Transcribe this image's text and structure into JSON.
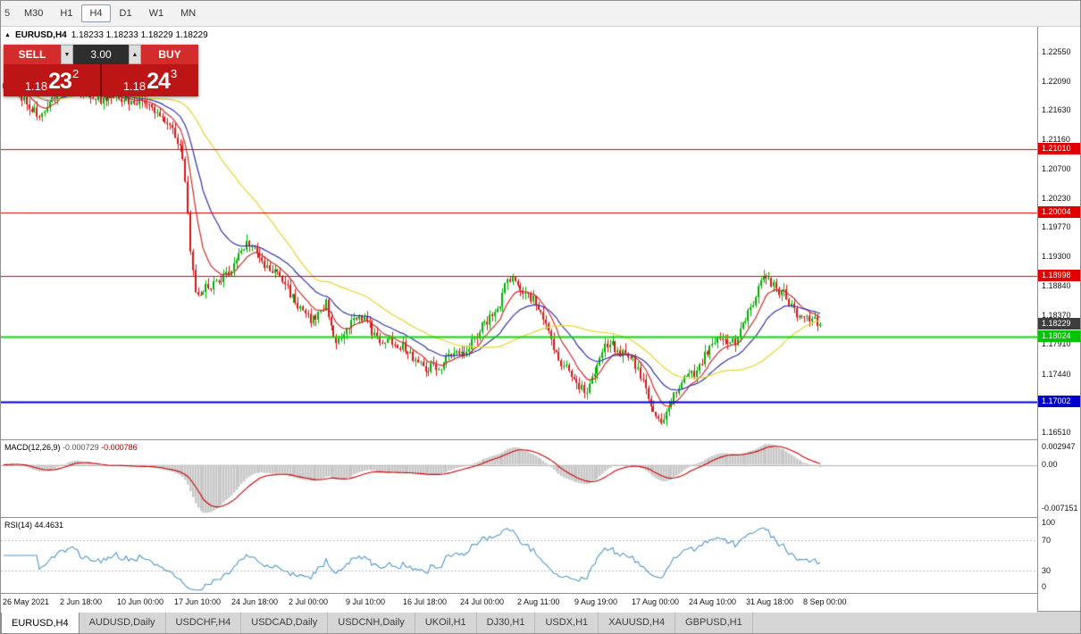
{
  "icons": {
    "expand_arrow": "▲",
    "spinner_up": "▲",
    "spinner_down": "▼"
  },
  "toolbar": {
    "partial_label": "5",
    "timeframes": [
      {
        "label": "M30",
        "active": false
      },
      {
        "label": "H1",
        "active": false
      },
      {
        "label": "H4",
        "active": true
      },
      {
        "label": "D1",
        "active": false
      },
      {
        "label": "W1",
        "active": false
      },
      {
        "label": "MN",
        "active": false
      }
    ]
  },
  "chart": {
    "symbol_title": "EURUSD,H4",
    "ohlc_line": "1.18233 1.18233 1.18229 1.18229"
  },
  "trade_panel": {
    "sell_label": "SELL",
    "buy_label": "BUY",
    "volume": "3.00",
    "sell_price": {
      "big": "1.18",
      "pips": "23",
      "sup": "2"
    },
    "buy_price": {
      "big": "1.18",
      "pips": "24",
      "sup": "3"
    }
  },
  "indicators": {
    "macd": {
      "name": "MACD(12,26,9)",
      "value1": "-0.000729",
      "value2": "-0.000786",
      "axis": [
        "0.002947",
        "0.00",
        "-0.007151"
      ],
      "range": [
        0.004,
        -0.0085
      ],
      "params": {
        "fast": 12,
        "slow": 26,
        "signal": 9
      }
    },
    "rsi": {
      "name": "RSI(14)",
      "value": "44.4631",
      "axis": [
        "100",
        "70",
        "30",
        "0"
      ],
      "levels": [
        70,
        30
      ],
      "period": 14
    }
  },
  "price_axis": {
    "ticks": [
      {
        "label": "1.22550",
        "price": 1.2255
      },
      {
        "label": "1.22090",
        "price": 1.2209
      },
      {
        "label": "1.21630",
        "price": 1.2163
      },
      {
        "label": "1.21160",
        "price": 1.2116
      },
      {
        "label": "1.20700",
        "price": 1.207
      },
      {
        "label": "1.20230",
        "price": 1.2023
      },
      {
        "label": "1.19770",
        "price": 1.1977
      },
      {
        "label": "1.19300",
        "price": 1.193
      },
      {
        "label": "1.18840",
        "price": 1.1884
      },
      {
        "label": "1.18370",
        "price": 1.1837
      },
      {
        "label": "1.17910",
        "price": 1.1791
      },
      {
        "label": "1.17440",
        "price": 1.1744
      },
      {
        "label": "1.16510",
        "price": 1.1651
      }
    ],
    "badges": [
      {
        "label": "1.21010",
        "price": 1.2101,
        "bg": "#e00000",
        "fg": "#ffffff"
      },
      {
        "label": "1.20004",
        "price": 1.20004,
        "bg": "#e00000",
        "fg": "#ffffff"
      },
      {
        "label": "1.18998",
        "price": 1.18998,
        "bg": "#e00000",
        "fg": "#ffffff"
      },
      {
        "label": "1.18229",
        "price": 1.18229,
        "bg": "#3d3d3d",
        "fg": "#ffffff"
      },
      {
        "label": "1.18024",
        "price": 1.18024,
        "bg": "#00c400",
        "fg": "#ffffff"
      },
      {
        "label": "1.17002",
        "price": 1.17002,
        "bg": "#0000cc",
        "fg": "#ffffff"
      }
    ]
  },
  "tabs": [
    {
      "label": "EURUSD,H4",
      "active": true
    },
    {
      "label": "AUDUSD,Daily",
      "active": false
    },
    {
      "label": "USDCHF,H4",
      "active": false
    },
    {
      "label": "USDCAD,Daily",
      "active": false
    },
    {
      "label": "USDCNH,Daily",
      "active": false
    },
    {
      "label": "UKOil,H1",
      "active": false
    },
    {
      "label": "DJ30,H1",
      "active": false
    },
    {
      "label": "USDX,H1",
      "active": false
    },
    {
      "label": "XAUUSD,H4",
      "active": false
    },
    {
      "label": "GBPUSD,H1",
      "active": false
    }
  ],
  "chart_data": {
    "type": "candlestick",
    "symbol": "EURUSD",
    "timeframe": "H4",
    "open": 1.18233,
    "high": 1.18233,
    "low": 1.18229,
    "close": 1.18229,
    "last_price": 1.18229,
    "price_range": [
      1.164,
      1.2295
    ],
    "data_fraction": 0.79,
    "candle_count": 320,
    "x_labels": [
      "26 May 2021",
      "2 Jun 18:00",
      "10 Jun 00:00",
      "17 Jun 10:00",
      "24 Jun 18:00",
      "2 Jul 00:00",
      "9 Jul 10:00",
      "16 Jul 18:00",
      "24 Jul 00:00",
      "2 Aug 11:00",
      "9 Aug 19:00",
      "17 Aug 00:00",
      "24 Aug 10:00",
      "31 Aug 18:00",
      "8 Sep 00:00"
    ],
    "hlines": [
      {
        "price": 1.2101,
        "color": "#e00000",
        "width": 1
      },
      {
        "price": 1.20004,
        "color": "#e00000",
        "width": 1
      },
      {
        "price": 1.18998,
        "color": "#e00000",
        "width": 1
      },
      {
        "price": 1.18024,
        "color": "#00dc00",
        "width": 2
      },
      {
        "price": 1.17002,
        "color": "#0000d2",
        "width": 2
      }
    ],
    "moving_averages": [
      {
        "type": "ema",
        "period": 10,
        "color": "#d22a2a"
      },
      {
        "type": "ema",
        "period": 25,
        "color": "#3232aa"
      },
      {
        "type": "sma",
        "period": 50,
        "color": "#e8d22e"
      }
    ],
    "colors": {
      "up": "#00b000",
      "down": "#dc1414",
      "macd_hist": "#c8c8c8",
      "macd_signal": "#cc0000",
      "rsi_line": "#4f96c8",
      "rsi_levels": "#b6b6cc",
      "zero_line": "#b0b0b0"
    },
    "price_path": [
      [
        0.0,
        1.2205
      ],
      [
        0.025,
        1.218
      ],
      [
        0.051,
        1.215
      ],
      [
        0.065,
        1.219
      ],
      [
        0.083,
        1.2218
      ],
      [
        0.101,
        1.2185
      ],
      [
        0.12,
        1.2175
      ],
      [
        0.137,
        1.2192
      ],
      [
        0.155,
        1.217
      ],
      [
        0.173,
        1.218
      ],
      [
        0.195,
        1.215
      ],
      [
        0.209,
        1.2125
      ],
      [
        0.218,
        1.21
      ],
      [
        0.224,
        1.203
      ],
      [
        0.23,
        1.193
      ],
      [
        0.236,
        1.186
      ],
      [
        0.245,
        1.1875
      ],
      [
        0.263,
        1.1885
      ],
      [
        0.278,
        1.1915
      ],
      [
        0.29,
        1.1935
      ],
      [
        0.299,
        1.195
      ],
      [
        0.318,
        1.192
      ],
      [
        0.335,
        1.1905
      ],
      [
        0.35,
        1.187
      ],
      [
        0.363,
        1.1848
      ],
      [
        0.38,
        1.1832
      ],
      [
        0.395,
        1.185
      ],
      [
        0.408,
        1.1788
      ],
      [
        0.42,
        1.1815
      ],
      [
        0.432,
        1.1838
      ],
      [
        0.444,
        1.1822
      ],
      [
        0.458,
        1.1798
      ],
      [
        0.471,
        1.1805
      ],
      [
        0.485,
        1.1788
      ],
      [
        0.498,
        1.1772
      ],
      [
        0.512,
        1.1762
      ],
      [
        0.525,
        1.1758
      ],
      [
        0.535,
        1.1752
      ],
      [
        0.545,
        1.1768
      ],
      [
        0.553,
        1.1775
      ],
      [
        0.565,
        1.1788
      ],
      [
        0.58,
        1.1805
      ],
      [
        0.594,
        1.1828
      ],
      [
        0.607,
        1.1855
      ],
      [
        0.616,
        1.1898
      ],
      [
        0.628,
        1.1888
      ],
      [
        0.64,
        1.1868
      ],
      [
        0.652,
        1.186
      ],
      [
        0.665,
        1.182
      ],
      [
        0.679,
        1.1765
      ],
      [
        0.695,
        1.1742
      ],
      [
        0.715,
        1.1722
      ],
      [
        0.728,
        1.176
      ],
      [
        0.742,
        1.1795
      ],
      [
        0.755,
        1.1785
      ],
      [
        0.769,
        1.1772
      ],
      [
        0.787,
        1.1715
      ],
      [
        0.797,
        1.1685
      ],
      [
        0.805,
        1.1668
      ],
      [
        0.815,
        1.169
      ],
      [
        0.832,
        1.1728
      ],
      [
        0.85,
        1.1755
      ],
      [
        0.868,
        1.1795
      ],
      [
        0.88,
        1.1788
      ],
      [
        0.895,
        1.1798
      ],
      [
        0.913,
        1.184
      ],
      [
        0.922,
        1.1868
      ],
      [
        0.931,
        1.19
      ],
      [
        0.94,
        1.1892
      ],
      [
        0.95,
        1.1878
      ],
      [
        0.958,
        1.1872
      ],
      [
        0.967,
        1.1842
      ],
      [
        0.976,
        1.1825
      ],
      [
        0.985,
        1.1832
      ],
      [
        0.993,
        1.184
      ],
      [
        1.0,
        1.18229
      ]
    ]
  }
}
